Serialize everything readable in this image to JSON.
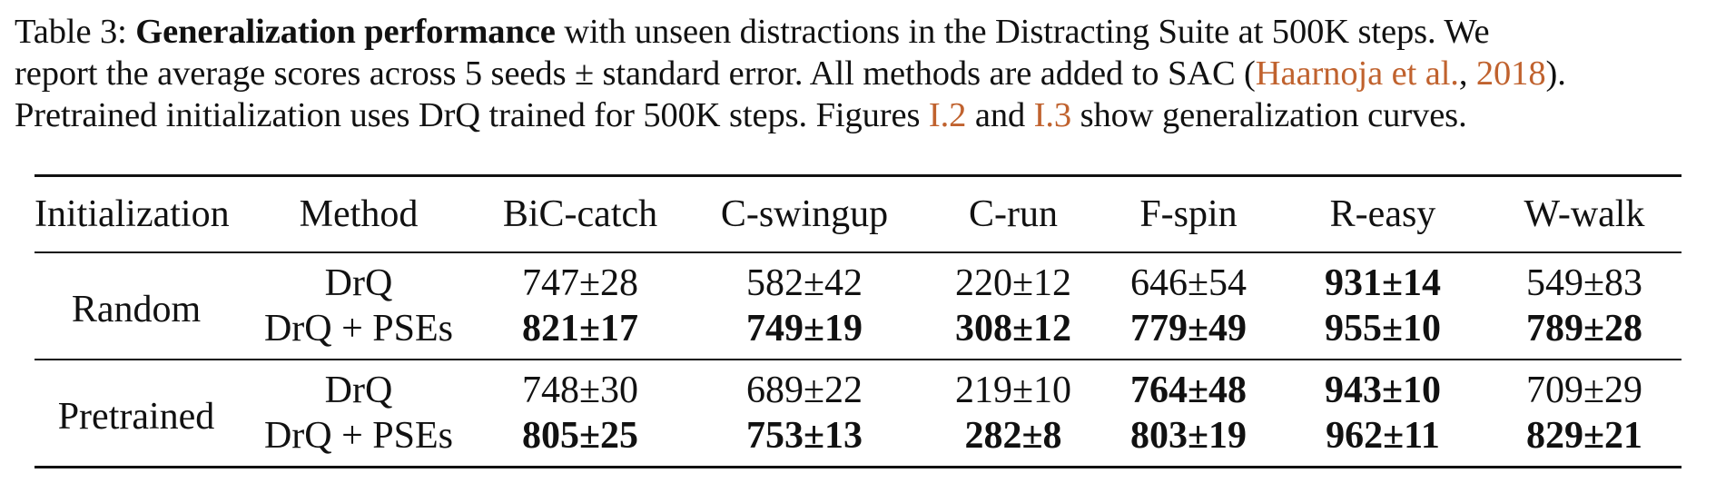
{
  "caption": {
    "label": "Table 3:",
    "bold_title": "Generalization performance",
    "line1_rest": " with unseen distractions in the Distracting Suite at 500K steps.  We",
    "line2_pre": "report the average scores across 5 seeds ± standard error. All methods are added to SAC (",
    "line2_cite_author": "Haarnoja et al.",
    "line2_sep": ", ",
    "line2_cite_year": "2018",
    "line2_post": ").",
    "line3_pre": "Pretrained initialization uses DrQ trained for 500K steps. Figures ",
    "line3_ref1": "I.2",
    "line3_mid": " and ",
    "line3_ref2": "I.3",
    "line3_post": " show generalization curves."
  },
  "colors": {
    "citation": "#c0622e",
    "text": "#111111"
  },
  "table": {
    "headers": [
      "Initialization",
      "Method",
      "BiC-catch",
      "C-swingup",
      "C-run",
      "F-spin",
      "R-easy",
      "W-walk"
    ],
    "groups": [
      {
        "init": "Random",
        "rows": [
          {
            "method": "DrQ",
            "cells": [
              {
                "text": "747±28",
                "bold": false
              },
              {
                "text": "582±42",
                "bold": false
              },
              {
                "text": "220±12",
                "bold": false
              },
              {
                "text": "646±54",
                "bold": false
              },
              {
                "text": "931±14",
                "bold": true
              },
              {
                "text": "549±83",
                "bold": false
              }
            ]
          },
          {
            "method": "DrQ + PSEs",
            "cells": [
              {
                "text": "821±17",
                "bold": true
              },
              {
                "text": "749±19",
                "bold": true
              },
              {
                "text": "308±12",
                "bold": true
              },
              {
                "text": "779±49",
                "bold": true
              },
              {
                "text": "955±10",
                "bold": true
              },
              {
                "text": "789±28",
                "bold": true
              }
            ]
          }
        ]
      },
      {
        "init": "Pretrained",
        "rows": [
          {
            "method": "DrQ",
            "cells": [
              {
                "text": "748±30",
                "bold": false
              },
              {
                "text": "689±22",
                "bold": false
              },
              {
                "text": "219±10",
                "bold": false
              },
              {
                "text": "764±48",
                "bold": true
              },
              {
                "text": "943±10",
                "bold": true
              },
              {
                "text": "709±29",
                "bold": false
              }
            ]
          },
          {
            "method": "DrQ + PSEs",
            "cells": [
              {
                "text": "805±25",
                "bold": true
              },
              {
                "text": "753±13",
                "bold": true
              },
              {
                "text": "282±8",
                "bold": true
              },
              {
                "text": "803±19",
                "bold": true
              },
              {
                "text": "962±11",
                "bold": true
              },
              {
                "text": "829±21",
                "bold": true
              }
            ]
          }
        ]
      }
    ]
  }
}
